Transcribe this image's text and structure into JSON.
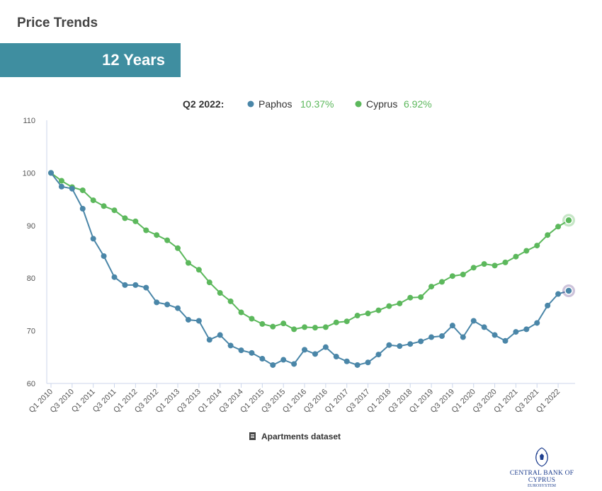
{
  "header": {
    "title": "Price Trends",
    "range_label": "12 Years"
  },
  "legend": {
    "period": "Q2 2022:",
    "items": [
      {
        "name": "Paphos",
        "change": "10.37%"
      },
      {
        "name": "Cyprus",
        "change": "6.92%"
      }
    ]
  },
  "footer": {
    "dataset_label": "Apartments dataset"
  },
  "logo": {
    "bank_name": "CENTRAL BANK OF CYPRUS",
    "sub_name": "EUROSYSTEM"
  },
  "colors": {
    "banner": "#3f8ea0",
    "paphos": "#4a86a8",
    "cyprus": "#5cb85c",
    "change_text": "#5cb85c"
  },
  "chart_data": {
    "type": "line",
    "x": [
      "Q1 2010",
      "Q2 2010",
      "Q3 2010",
      "Q4 2010",
      "Q1 2011",
      "Q2 2011",
      "Q3 2011",
      "Q4 2011",
      "Q1 2012",
      "Q2 2012",
      "Q3 2012",
      "Q4 2012",
      "Q1 2013",
      "Q2 2013",
      "Q3 2013",
      "Q4 2013",
      "Q1 2014",
      "Q2 2014",
      "Q3 2014",
      "Q4 2014",
      "Q1 2015",
      "Q2 2015",
      "Q3 2015",
      "Q4 2015",
      "Q1 2016",
      "Q2 2016",
      "Q3 2016",
      "Q4 2016",
      "Q1 2017",
      "Q2 2017",
      "Q3 2017",
      "Q4 2017",
      "Q1 2018",
      "Q2 2018",
      "Q3 2018",
      "Q4 2018",
      "Q1 2019",
      "Q2 2019",
      "Q3 2019",
      "Q4 2019",
      "Q1 2020",
      "Q2 2020",
      "Q3 2020",
      "Q4 2020",
      "Q1 2021",
      "Q2 2021",
      "Q3 2021",
      "Q4 2021",
      "Q1 2022",
      "Q2 2022"
    ],
    "tick_labels": [
      "Q1 2010",
      "Q3 2010",
      "Q1 2011",
      "Q3 2011",
      "Q1 2012",
      "Q3 2012",
      "Q1 2013",
      "Q3 2013",
      "Q1 2014",
      "Q3 2014",
      "Q1 2015",
      "Q3 2015",
      "Q1 2016",
      "Q3 2016",
      "Q1 2017",
      "Q3 2017",
      "Q1 2018",
      "Q3 2018",
      "Q1 2019",
      "Q3 2019",
      "Q1 2020",
      "Q3 2020",
      "Q1 2021",
      "Q3 2021",
      "Q1 2022"
    ],
    "series": [
      {
        "name": "Paphos",
        "values": [
          100,
          97.4,
          97.0,
          93.2,
          87.5,
          84.2,
          80.2,
          78.7,
          78.7,
          78.2,
          75.4,
          75.0,
          74.3,
          72.1,
          71.9,
          68.3,
          69.2,
          67.2,
          66.3,
          65.8,
          64.7,
          63.5,
          64.5,
          63.7,
          66.4,
          65.6,
          66.9,
          65.1,
          64.2,
          63.5,
          64.0,
          65.5,
          67.3,
          67.1,
          67.5,
          68.0,
          68.8,
          69.0,
          71.0,
          68.8,
          71.9,
          70.7,
          69.2,
          68.1,
          69.8,
          70.3,
          71.5,
          74.8,
          77.0,
          77.6
        ]
      },
      {
        "name": "Cyprus",
        "values": [
          100,
          98.5,
          97.3,
          96.7,
          94.8,
          93.7,
          92.9,
          91.4,
          90.8,
          89.1,
          88.2,
          87.2,
          85.7,
          82.9,
          81.6,
          79.2,
          77.2,
          75.6,
          73.5,
          72.3,
          71.3,
          70.8,
          71.4,
          70.3,
          70.7,
          70.6,
          70.7,
          71.6,
          71.8,
          72.9,
          73.3,
          73.9,
          74.7,
          75.2,
          76.3,
          76.4,
          78.4,
          79.3,
          80.4,
          80.7,
          82.0,
          82.7,
          82.4,
          83.0,
          84.1,
          85.2,
          86.2,
          88.2,
          89.8,
          91.0
        ]
      }
    ],
    "ylim": [
      60,
      110
    ],
    "yticks": [
      60,
      70,
      80,
      90,
      100,
      110
    ],
    "grid": false,
    "legend_position": "top"
  }
}
